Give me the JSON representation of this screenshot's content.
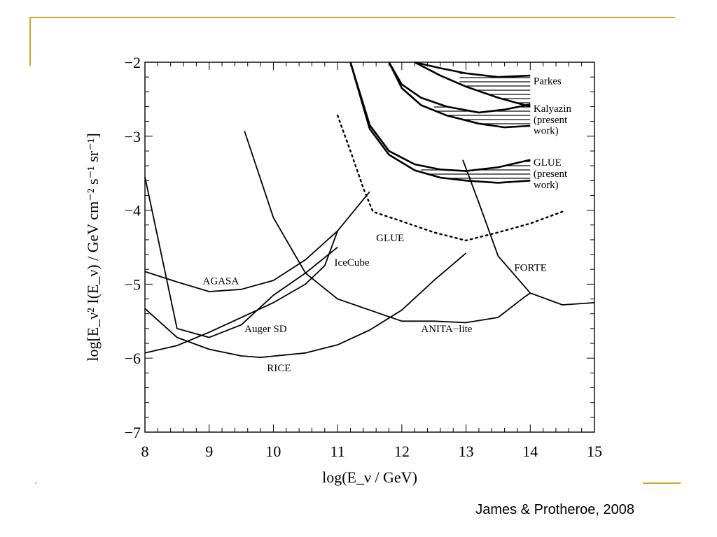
{
  "slide": {
    "citation": "James & Protheroe, 2008",
    "accent_color": "#d4a62a"
  },
  "chart_data": {
    "type": "line",
    "xlabel": "log(E_ν / GeV)",
    "ylabel": "log[E_ν² I(E_ν) / GeV cm⁻² s⁻¹ sr⁻¹]",
    "xlim": [
      8,
      15
    ],
    "ylim": [
      -7,
      -2
    ],
    "x_ticks": [
      "8",
      "9",
      "10",
      "11",
      "12",
      "13",
      "14",
      "15"
    ],
    "y_ticks": [
      "−2",
      "−3",
      "−4",
      "−5",
      "−6",
      "−7"
    ],
    "grid": false,
    "series": [
      {
        "name": "AGASA",
        "style": "solid",
        "points": [
          [
            8.0,
            -4.83
          ],
          [
            8.5,
            -4.97
          ],
          [
            9.0,
            -5.1
          ],
          [
            9.5,
            -5.07
          ],
          [
            10.0,
            -4.95
          ],
          [
            10.5,
            -4.67
          ],
          [
            11.0,
            -4.28
          ],
          [
            11.5,
            -3.75
          ]
        ]
      },
      {
        "name": "Auger SD",
        "style": "solid",
        "points": [
          [
            8.0,
            -3.55
          ],
          [
            8.5,
            -5.6
          ],
          [
            9.0,
            -5.72
          ],
          [
            9.5,
            -5.55
          ],
          [
            10.0,
            -5.15
          ],
          [
            10.5,
            -4.85
          ],
          [
            11.0,
            -4.5
          ]
        ]
      },
      {
        "name": "IceCube",
        "style": "solid",
        "points": [
          [
            8.0,
            -5.93
          ],
          [
            8.5,
            -5.83
          ],
          [
            9.0,
            -5.65
          ],
          [
            9.5,
            -5.45
          ],
          [
            10.0,
            -5.25
          ],
          [
            10.5,
            -5.0
          ],
          [
            10.8,
            -4.75
          ],
          [
            11.0,
            -4.28
          ]
        ]
      },
      {
        "name": "RICE",
        "style": "solid",
        "points": [
          [
            8.0,
            -5.33
          ],
          [
            8.5,
            -5.72
          ],
          [
            9.0,
            -5.88
          ],
          [
            9.5,
            -5.97
          ],
          [
            9.8,
            -5.99
          ],
          [
            10.5,
            -5.93
          ],
          [
            11.0,
            -5.82
          ],
          [
            11.5,
            -5.62
          ],
          [
            12.0,
            -5.35
          ],
          [
            12.5,
            -4.95
          ],
          [
            13.0,
            -4.58
          ]
        ]
      },
      {
        "name": "ANITA-lite",
        "style": "solid",
        "points": [
          [
            9.55,
            -2.93
          ],
          [
            10.0,
            -4.1
          ],
          [
            10.5,
            -4.85
          ],
          [
            11.0,
            -5.2
          ],
          [
            11.5,
            -5.35
          ],
          [
            12.0,
            -5.5
          ],
          [
            12.5,
            -5.5
          ],
          [
            13.0,
            -5.52
          ],
          [
            13.5,
            -5.45
          ],
          [
            13.9,
            -5.18
          ],
          [
            14.0,
            -5.12
          ],
          [
            14.5,
            -5.28
          ],
          [
            15.0,
            -5.25
          ]
        ]
      },
      {
        "name": "FORTE",
        "style": "solid",
        "points": [
          [
            12.95,
            -3.32
          ],
          [
            13.2,
            -3.9
          ],
          [
            13.5,
            -4.62
          ],
          [
            14.0,
            -5.12
          ]
        ]
      },
      {
        "name": "GLUE",
        "style": "dotted",
        "points": [
          [
            11.0,
            -2.72
          ],
          [
            11.2,
            -3.2
          ],
          [
            11.4,
            -3.7
          ],
          [
            11.55,
            -4.02
          ],
          [
            12.0,
            -4.15
          ],
          [
            12.5,
            -4.3
          ],
          [
            13.0,
            -4.41
          ],
          [
            13.5,
            -4.3
          ],
          [
            14.0,
            -4.18
          ],
          [
            14.5,
            -4.02
          ]
        ]
      },
      {
        "name": "GLUE (present work) upper",
        "style": "solid",
        "points": [
          [
            11.2,
            -2.0
          ],
          [
            11.5,
            -2.85
          ],
          [
            11.8,
            -3.2
          ],
          [
            12.2,
            -3.38
          ],
          [
            12.6,
            -3.45
          ],
          [
            13.0,
            -3.47
          ],
          [
            13.5,
            -3.42
          ],
          [
            14.0,
            -3.32
          ]
        ]
      },
      {
        "name": "GLUE (present work) lower",
        "style": "solid",
        "points": [
          [
            11.2,
            -2.0
          ],
          [
            11.5,
            -2.9
          ],
          [
            11.8,
            -3.25
          ],
          [
            12.2,
            -3.46
          ],
          [
            12.6,
            -3.56
          ],
          [
            13.0,
            -3.6
          ],
          [
            13.5,
            -3.63
          ],
          [
            14.0,
            -3.6
          ]
        ]
      },
      {
        "name": "Kalyazin (present work) upper",
        "style": "solid",
        "points": [
          [
            11.8,
            -2.0
          ],
          [
            12.0,
            -2.3
          ],
          [
            12.3,
            -2.48
          ],
          [
            12.7,
            -2.6
          ],
          [
            13.2,
            -2.68
          ],
          [
            13.6,
            -2.64
          ],
          [
            14.0,
            -2.57
          ]
        ]
      },
      {
        "name": "Kalyazin (present work) lower",
        "style": "solid",
        "points": [
          [
            11.8,
            -2.0
          ],
          [
            12.0,
            -2.35
          ],
          [
            12.3,
            -2.58
          ],
          [
            12.7,
            -2.72
          ],
          [
            13.2,
            -2.83
          ],
          [
            13.6,
            -2.88
          ],
          [
            14.0,
            -2.86
          ]
        ]
      },
      {
        "name": "Parkes upper",
        "style": "solid",
        "points": [
          [
            12.2,
            -2.0
          ],
          [
            12.6,
            -2.08
          ],
          [
            13.0,
            -2.15
          ],
          [
            13.5,
            -2.2
          ],
          [
            14.0,
            -2.18
          ]
        ]
      },
      {
        "name": "Parkes lower",
        "style": "solid",
        "points": [
          [
            12.2,
            -2.0
          ],
          [
            12.6,
            -2.18
          ],
          [
            13.0,
            -2.33
          ],
          [
            13.5,
            -2.48
          ],
          [
            14.0,
            -2.6
          ]
        ]
      }
    ],
    "labels": [
      {
        "text": "AGASA",
        "x": 8.9,
        "y": -5.0
      },
      {
        "text": "Auger SD",
        "x": 9.55,
        "y": -5.65
      },
      {
        "text": "IceCube",
        "x": 10.95,
        "y": -4.75
      },
      {
        "text": "RICE",
        "x": 9.9,
        "y": -6.18
      },
      {
        "text": "GLUE",
        "x": 11.6,
        "y": -4.42
      },
      {
        "text": "ANITA−lite",
        "x": 12.3,
        "y": -5.65
      },
      {
        "text": "FORTE",
        "x": 13.75,
        "y": -4.82
      },
      {
        "text": "Parkes",
        "x": 14.05,
        "y": -2.3
      },
      {
        "text": "Kalyazin",
        "x": 14.05,
        "y": -2.67
      },
      {
        "text": "(present",
        "x": 14.05,
        "y": -2.82
      },
      {
        "text": "work)",
        "x": 14.05,
        "y": -2.97
      },
      {
        "text": "GLUE",
        "x": 14.05,
        "y": -3.4
      },
      {
        "text": "(present",
        "x": 14.05,
        "y": -3.55
      },
      {
        "text": "work)",
        "x": 14.05,
        "y": -3.7
      }
    ],
    "hatched_regions": [
      {
        "name": "Parkes",
        "between": [
          "Parkes upper",
          "Parkes lower"
        ],
        "x_range": [
          12.9,
          14.0
        ]
      },
      {
        "name": "Kalyazin (present work)",
        "between": [
          "Kalyazin (present work) upper",
          "Kalyazin (present work) lower"
        ],
        "x_range": [
          12.5,
          14.0
        ]
      },
      {
        "name": "GLUE (present work)",
        "between": [
          "GLUE (present work) upper",
          "GLUE (present work) lower"
        ],
        "x_range": [
          12.3,
          14.0
        ]
      }
    ]
  }
}
